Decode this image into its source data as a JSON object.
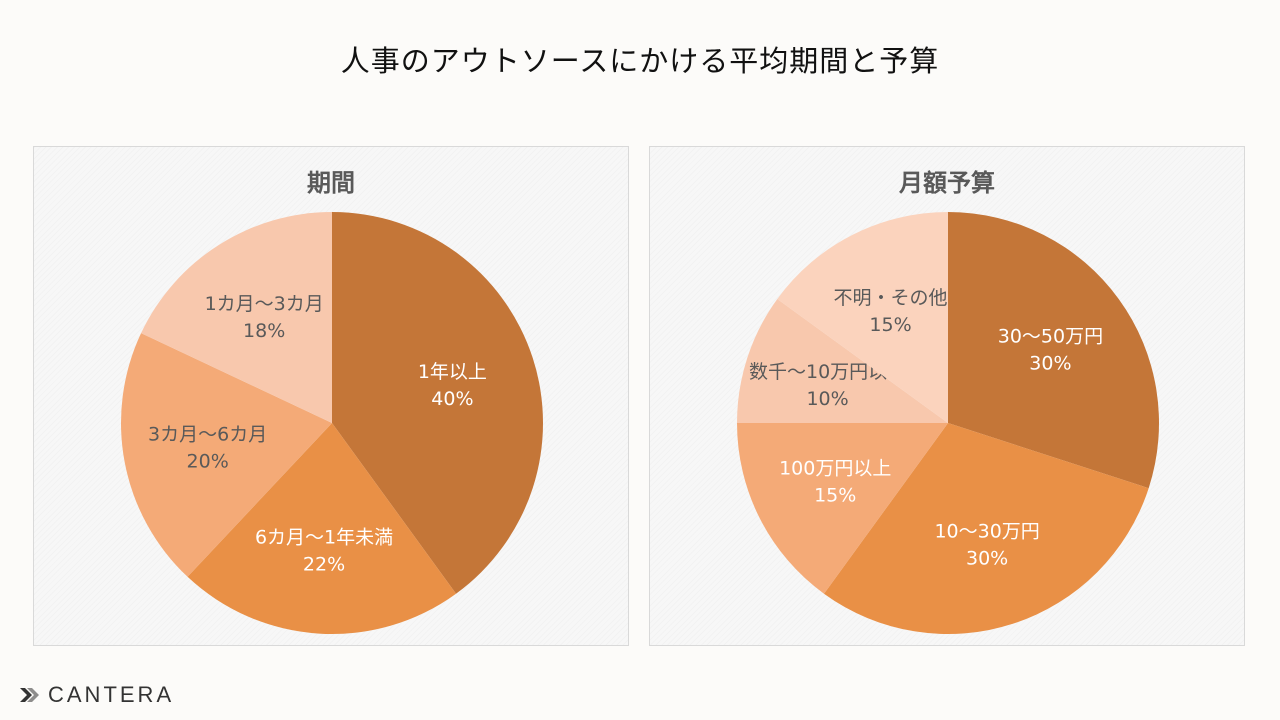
{
  "page_title": "人事のアウトソースにかける平均期間と予算",
  "logo": {
    "text": "CANTERA"
  },
  "chart_data": [
    {
      "type": "pie",
      "title": "期間",
      "slices": [
        {
          "label": "1年以上",
          "value": 40,
          "value_label": "40%",
          "color": "#c47638",
          "text_color": "#ffffff"
        },
        {
          "label": "6カ月～1年未満",
          "value": 22,
          "value_label": "22%",
          "color": "#e99046",
          "text_color": "#ffffff"
        },
        {
          "label": "3カ月～6カ月",
          "value": 20,
          "value_label": "20%",
          "color": "#f4aa77",
          "text_color": "#595959"
        },
        {
          "label": "1カ月～3カ月",
          "value": 18,
          "value_label": "18%",
          "color": "#f8c8ad",
          "text_color": "#595959"
        }
      ]
    },
    {
      "type": "pie",
      "title": "月額予算",
      "slices": [
        {
          "label": "30～50万円",
          "value": 30,
          "value_label": "30%",
          "color": "#c47638",
          "text_color": "#ffffff"
        },
        {
          "label": "10～30万円",
          "value": 30,
          "value_label": "30%",
          "color": "#e99046",
          "text_color": "#ffffff"
        },
        {
          "label": "100万円以上",
          "value": 15,
          "value_label": "15%",
          "color": "#f4aa77",
          "text_color": "#ffffff"
        },
        {
          "label": "数千～10万円以下",
          "value": 10,
          "value_label": "10%",
          "color": "#f8c8ad",
          "text_color": "#595959"
        },
        {
          "label": "不明・その他",
          "value": 15,
          "value_label": "15%",
          "color": "#fbd3bd",
          "text_color": "#595959"
        }
      ]
    }
  ]
}
